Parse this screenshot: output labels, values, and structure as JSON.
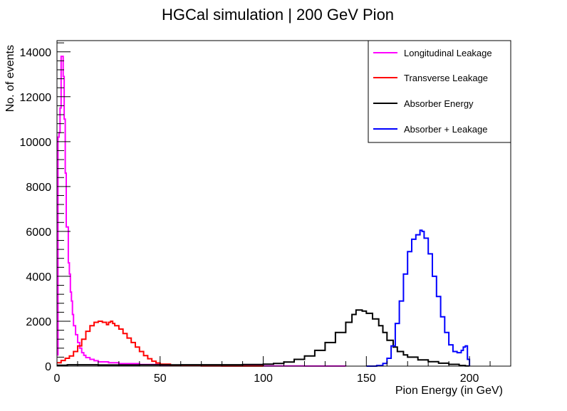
{
  "chart_data": {
    "type": "line",
    "title": "HGCal simulation | 200 GeV Pion",
    "xlabel": "Pion Energy (in GeV)",
    "ylabel": "No. of events",
    "xlim": [
      0,
      220
    ],
    "ylim": [
      0,
      14500
    ],
    "x_ticks": [
      0,
      50,
      100,
      150,
      200
    ],
    "y_ticks": [
      0,
      2000,
      4000,
      6000,
      8000,
      10000,
      12000,
      14000
    ],
    "grid": false,
    "legend_position": "top-right",
    "series": [
      {
        "name": "Longitudinal Leakage",
        "color": "#ff00ff",
        "x": [
          0,
          0.5,
          1,
          1.5,
          2,
          2.5,
          3,
          3.5,
          4,
          4.5,
          5,
          5.5,
          6,
          6.5,
          7,
          7.5,
          8,
          9,
          10,
          11,
          12,
          13,
          14,
          16,
          18,
          20,
          25,
          30,
          40,
          50,
          60,
          80,
          100,
          120,
          140
        ],
        "values": [
          500,
          10200,
          10400,
          11500,
          13800,
          13800,
          12900,
          11000,
          8600,
          6200,
          6200,
          4600,
          4100,
          3300,
          2900,
          2300,
          1800,
          1400,
          1050,
          800,
          600,
          480,
          380,
          300,
          240,
          190,
          150,
          110,
          70,
          40,
          25,
          15,
          8,
          4,
          0
        ]
      },
      {
        "name": "Transverse Leakage",
        "color": "#ff0000",
        "x": [
          0,
          2,
          4,
          6,
          8,
          10,
          12,
          14,
          16,
          18,
          20,
          22,
          24,
          25,
          26,
          27,
          28,
          30,
          32,
          34,
          36,
          38,
          40,
          42,
          44,
          46,
          48,
          50,
          55,
          60,
          70,
          80,
          100
        ],
        "values": [
          150,
          250,
          350,
          450,
          650,
          900,
          1200,
          1550,
          1800,
          1950,
          2000,
          1950,
          1850,
          1950,
          2000,
          1900,
          1800,
          1650,
          1450,
          1250,
          1050,
          850,
          650,
          470,
          330,
          220,
          140,
          90,
          45,
          20,
          8,
          3,
          0
        ]
      },
      {
        "name": "Absorber Energy",
        "color": "#000000",
        "x": [
          0,
          5,
          20,
          40,
          60,
          80,
          90,
          100,
          105,
          110,
          115,
          120,
          125,
          130,
          135,
          140,
          143,
          145,
          148,
          150,
          153,
          156,
          158,
          160,
          163,
          165,
          168,
          170,
          175,
          180,
          185,
          190,
          195,
          198,
          200
        ],
        "values": [
          40,
          60,
          50,
          55,
          60,
          60,
          70,
          90,
          120,
          180,
          300,
          450,
          700,
          1050,
          1500,
          1950,
          2300,
          2500,
          2450,
          2350,
          2100,
          1800,
          1500,
          1150,
          850,
          650,
          500,
          400,
          280,
          200,
          130,
          80,
          30,
          10,
          0
        ]
      },
      {
        "name": "Absorber + Leakage",
        "color": "#0000ff",
        "x": [
          150,
          155,
          158,
          160,
          162,
          164,
          166,
          168,
          170,
          172,
          174,
          176,
          177,
          178,
          180,
          182,
          184,
          186,
          188,
          190,
          192,
          194,
          196,
          197,
          198,
          199,
          200
        ],
        "values": [
          0,
          30,
          120,
          350,
          900,
          1900,
          2900,
          4100,
          5100,
          5650,
          5850,
          6050,
          6000,
          5700,
          5000,
          4000,
          3100,
          2200,
          1500,
          950,
          650,
          600,
          700,
          850,
          900,
          300,
          0
        ]
      }
    ]
  }
}
